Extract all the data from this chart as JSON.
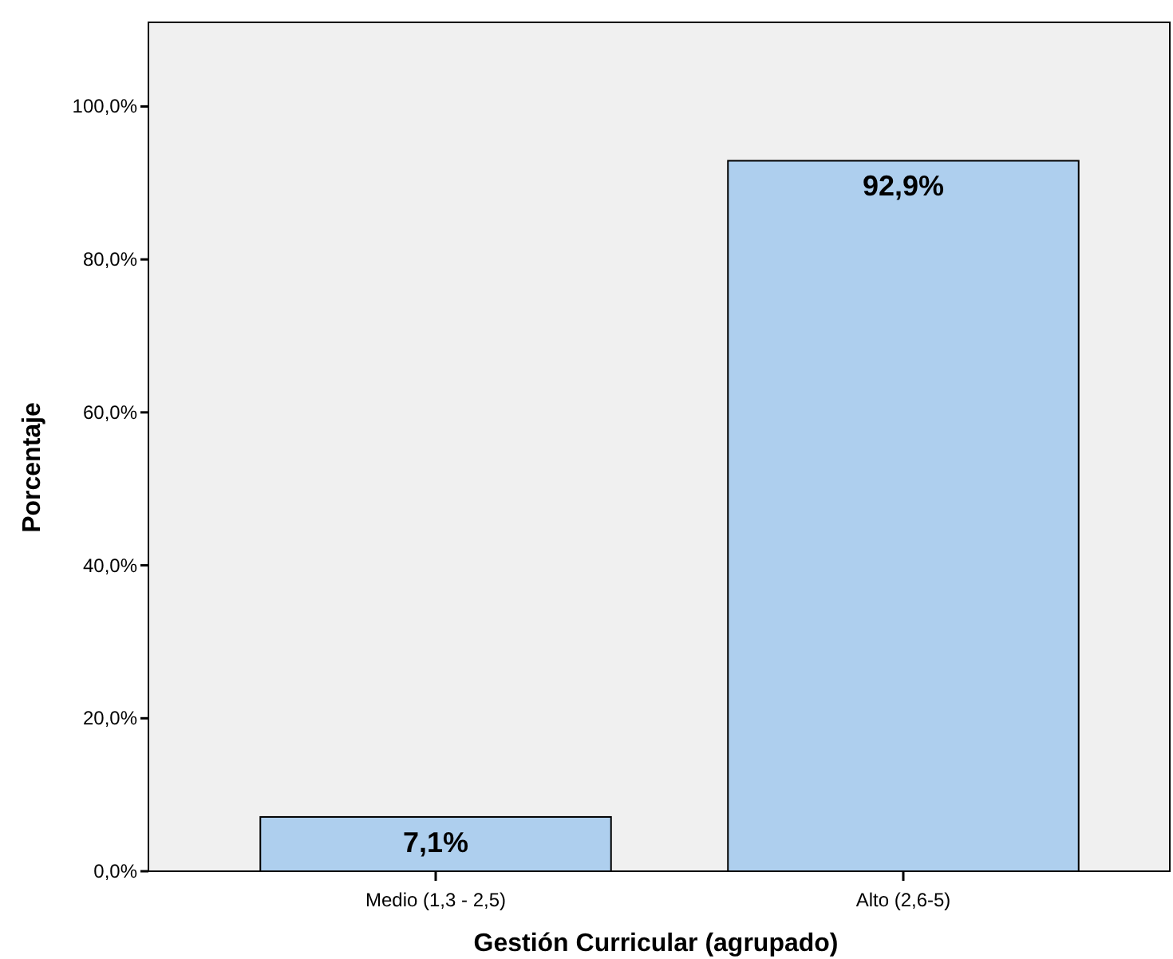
{
  "chart_data": {
    "type": "bar",
    "xlabel": "Gestión Curricular (agrupado)",
    "ylabel": "Porcentaje",
    "categories": [
      "Medio (1,3 - 2,5)",
      "Alto (2,6-5)"
    ],
    "values": [
      7.1,
      92.9
    ],
    "color": "#aecfee",
    "value_labels": [
      "7,1%",
      "92,9%"
    ],
    "ylim": [
      0,
      111
    ],
    "yticks": [
      {
        "value": 0,
        "label": "0,0%"
      },
      {
        "value": 20,
        "label": "20,0%"
      },
      {
        "value": 40,
        "label": "40,0%"
      },
      {
        "value": 60,
        "label": "60,0%"
      },
      {
        "value": 80,
        "label": "80,0%"
      },
      {
        "value": 100,
        "label": "100,0%"
      }
    ],
    "grid": false
  }
}
